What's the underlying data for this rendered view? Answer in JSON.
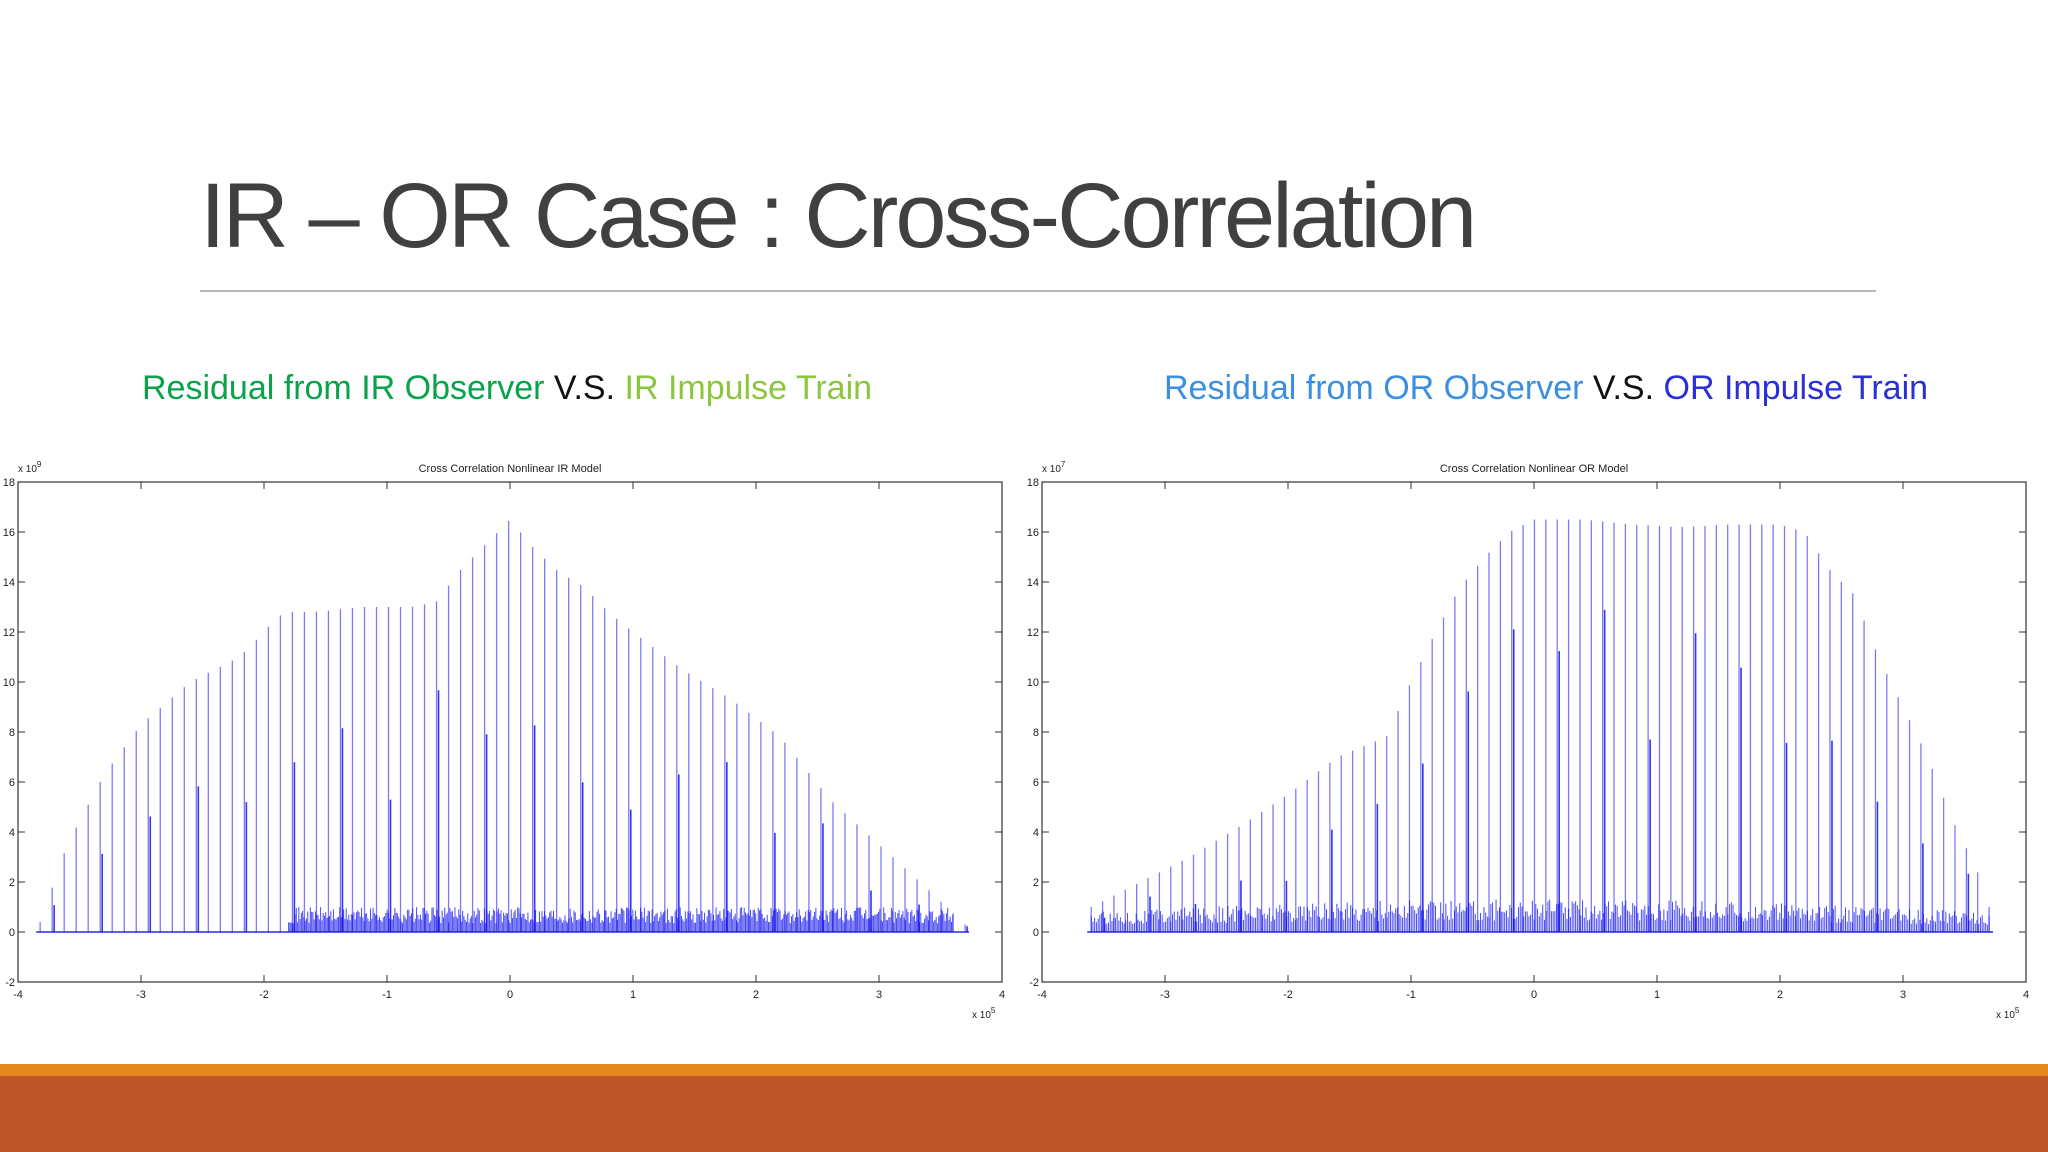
{
  "slide": {
    "title": "IR – OR Case : Cross-Correlation",
    "colors": {
      "title": "#404040",
      "rule": "#b8b8b8",
      "accent_orange": "#e48a1c",
      "accent_rust": "#be5629",
      "caption_ir_residual": "#0aa24a",
      "caption_ir_train": "#8cc63f",
      "caption_or_residual": "#3b8fe0",
      "caption_or_train": "#2a2fd6",
      "caption_vs": "#111111",
      "plot_line": "#1010f0"
    },
    "captions": {
      "left": {
        "residual": "Residual from IR Observer",
        "vs": " V.S. ",
        "train": "IR Impulse Train"
      },
      "right": {
        "residual": "Residual from OR Observer",
        "vs": " V.S. ",
        "train": "OR Impulse Train"
      }
    }
  },
  "chart_data": [
    {
      "type": "bar",
      "title": "Cross Correlation Nonlinear IR Model",
      "xlabel": "",
      "ylabel": "",
      "x_exponent_label": "x 10",
      "x_exponent": "5",
      "y_exponent_label": "x 10",
      "y_exponent": "9",
      "xlim": [
        -4,
        4
      ],
      "ylim": [
        -2,
        18
      ],
      "x_ticks": [
        -4,
        -3,
        -2,
        -1,
        0,
        1,
        2,
        3,
        4
      ],
      "y_ticks": [
        -2,
        0,
        2,
        4,
        6,
        8,
        10,
        12,
        14,
        16,
        18
      ],
      "grid": false,
      "series": [
        {
          "stem_x_range": [
            -3.82,
            3.7
          ],
          "stem_count": 78,
          "envelope_x": [
            -3.82,
            -3.6,
            -3.3,
            -3.0,
            -2.6,
            -2.2,
            -2.0,
            -1.9,
            -1.8,
            -1.6,
            -1.4,
            -1.2,
            -1.0,
            -0.8,
            -0.6,
            -0.4,
            -0.2,
            0.0,
            0.2,
            0.4,
            0.6,
            0.8,
            1.0,
            1.4,
            1.8,
            2.2,
            2.6,
            3.0,
            3.4,
            3.7
          ],
          "envelope_y": [
            0.4,
            3.5,
            6.3,
            8.3,
            10.0,
            11.0,
            12.0,
            12.6,
            12.8,
            12.8,
            12.9,
            13.0,
            13.0,
            13.0,
            13.2,
            14.5,
            15.5,
            16.5,
            15.3,
            14.4,
            13.8,
            12.8,
            12.0,
            10.5,
            9.3,
            7.8,
            5.3,
            3.5,
            1.7,
            0.3
          ],
          "dense_band_x_range": [
            -1.8,
            3.6
          ],
          "dense_band_level": 1.0
        }
      ]
    },
    {
      "type": "bar",
      "title": "Cross Correlation Nonlinear OR Model",
      "xlabel": "",
      "ylabel": "",
      "x_exponent_label": "x 10",
      "x_exponent": "5",
      "y_exponent_label": "x 10",
      "y_exponent": "7",
      "xlim": [
        -4,
        4
      ],
      "ylim": [
        -2,
        18
      ],
      "x_ticks": [
        -4,
        -3,
        -2,
        -1,
        0,
        1,
        2,
        3,
        4
      ],
      "y_ticks": [
        -2,
        0,
        2,
        4,
        6,
        8,
        10,
        12,
        14,
        16,
        18
      ],
      "grid": false,
      "series": [
        {
          "stem_x_range": [
            -3.6,
            3.7
          ],
          "stem_count": 80,
          "envelope_x": [
            -3.6,
            -3.2,
            -2.8,
            -2.4,
            -2.0,
            -1.6,
            -1.2,
            -1.0,
            -0.8,
            -0.6,
            -0.4,
            -0.2,
            0.0,
            0.2,
            0.4,
            0.8,
            1.2,
            1.6,
            2.0,
            2.2,
            2.4,
            2.6,
            2.8,
            3.0,
            3.2,
            3.4,
            3.6,
            3.7
          ],
          "envelope_y": [
            1.0,
            2.0,
            3.0,
            4.2,
            5.5,
            7.0,
            7.8,
            10.0,
            12.0,
            13.8,
            15.0,
            16.0,
            16.5,
            16.5,
            16.5,
            16.3,
            16.2,
            16.3,
            16.3,
            16.0,
            14.5,
            13.5,
            11.0,
            9.0,
            7.0,
            4.5,
            2.5,
            1.0
          ],
          "dense_band_x_range": [
            -3.6,
            3.7
          ],
          "dense_band_level": 1.2
        }
      ]
    }
  ]
}
